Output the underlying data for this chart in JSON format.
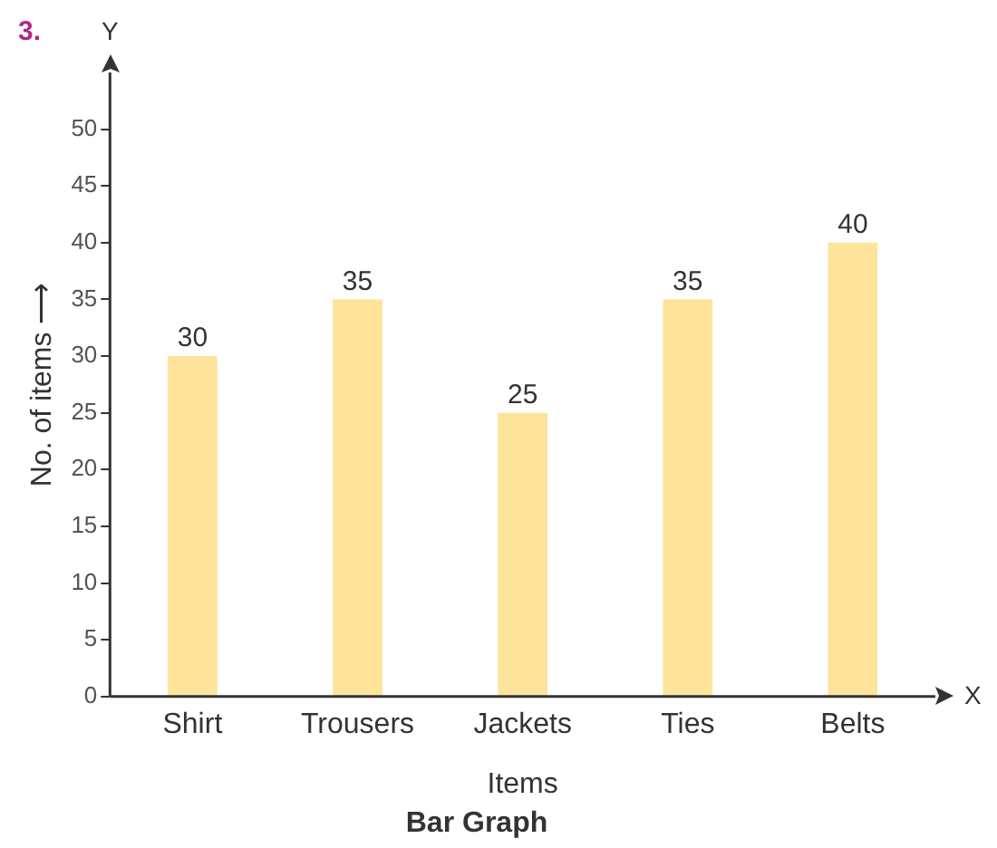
{
  "chart_data": {
    "type": "bar",
    "title": "Bar Graph",
    "xlabel": "Items",
    "ylabel": "No. of items ⟶",
    "annotations": [
      "3.",
      "Y",
      "X"
    ],
    "categories": [
      "Shirt",
      "Trousers",
      "Jackets",
      "Ties",
      "Belts"
    ],
    "values": [
      30,
      35,
      25,
      35,
      40
    ],
    "color": "#fde49a",
    "ylim": [
      0,
      55
    ],
    "yticks": [
      0,
      5,
      10,
      15,
      20,
      25,
      30,
      35,
      40,
      45,
      50
    ],
    "grid": false,
    "legend": false,
    "data_labels": true
  }
}
